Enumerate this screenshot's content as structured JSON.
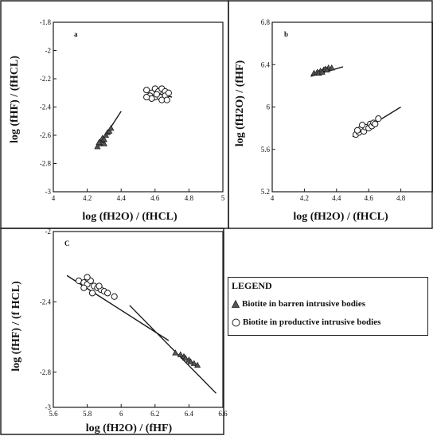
{
  "chart_data": [
    {
      "panel": "a",
      "type": "scatter",
      "xlabel": "log (fH2O) / (fHCL)",
      "ylabel": "log (fHF) / (fHCL)",
      "xlim": [
        4,
        5
      ],
      "ylim": [
        -3,
        -1.8
      ],
      "xticks": [
        "4",
        "4.2",
        "4.4",
        "4.6",
        "4.8",
        "5"
      ],
      "yticks": [
        "-1.8",
        "-2",
        "-2.2",
        "-2.4",
        "-2.6",
        "-2.8",
        "-3"
      ],
      "series": [
        {
          "name": "Biotite in barren intrusive bodies",
          "marker": "triangle",
          "points": [
            [
              4.26,
              -2.68
            ],
            [
              4.27,
              -2.66
            ],
            [
              4.28,
              -2.64
            ],
            [
              4.29,
              -2.62
            ],
            [
              4.3,
              -2.63
            ],
            [
              4.27,
              -2.65
            ],
            [
              4.31,
              -2.6
            ],
            [
              4.32,
              -2.58
            ],
            [
              4.3,
              -2.66
            ],
            [
              4.33,
              -2.57
            ],
            [
              4.34,
              -2.55
            ]
          ],
          "fit_line": [
            [
              4.26,
              -2.69
            ],
            [
              4.4,
              -2.43
            ]
          ]
        },
        {
          "name": "Biotite in productive intrusive bodies",
          "marker": "circle",
          "points": [
            [
              4.55,
              -2.28
            ],
            [
              4.58,
              -2.3
            ],
            [
              4.6,
              -2.27
            ],
            [
              4.62,
              -2.29
            ],
            [
              4.64,
              -2.27
            ],
            [
              4.66,
              -2.29
            ],
            [
              4.57,
              -2.32
            ],
            [
              4.6,
              -2.33
            ],
            [
              4.63,
              -2.33
            ],
            [
              4.66,
              -2.32
            ],
            [
              4.68,
              -2.3
            ],
            [
              4.61,
              -2.31
            ],
            [
              4.64,
              -2.35
            ],
            [
              4.58,
              -2.34
            ],
            [
              4.67,
              -2.35
            ],
            [
              4.55,
              -2.33
            ]
          ],
          "fit_line": [
            [
              4.53,
              -2.28
            ],
            [
              4.7,
              -2.33
            ]
          ]
        }
      ]
    },
    {
      "panel": "b",
      "type": "scatter",
      "xlabel": "log (fH2O) / (fHCL)",
      "ylabel": "log (fH2O) / (fHF)",
      "xlim": [
        4,
        5
      ],
      "ylim": [
        5.2,
        6.8
      ],
      "xticks": [
        "4",
        "4.2",
        "4.4",
        "4.6",
        "4.8"
      ],
      "yticks": [
        "6.8",
        "6.4",
        "6",
        "5.6",
        "5.2"
      ],
      "series": [
        {
          "name": "Biotite in barren intrusive bodies",
          "marker": "triangle",
          "points": [
            [
              4.26,
              6.32
            ],
            [
              4.28,
              6.33
            ],
            [
              4.3,
              6.34
            ],
            [
              4.32,
              6.35
            ],
            [
              4.33,
              6.36
            ],
            [
              4.35,
              6.37
            ],
            [
              4.37,
              6.37
            ],
            [
              4.29,
              6.32
            ],
            [
              4.31,
              6.33
            ],
            [
              4.34,
              6.35
            ]
          ],
          "fit_line": [
            [
              4.24,
              6.29
            ],
            [
              4.44,
              6.38
            ]
          ]
        },
        {
          "name": "Biotite in productive intrusive bodies",
          "marker": "circle",
          "points": [
            [
              4.52,
              5.74
            ],
            [
              4.54,
              5.76
            ],
            [
              4.55,
              5.79
            ],
            [
              4.57,
              5.77
            ],
            [
              4.58,
              5.81
            ],
            [
              4.6,
              5.8
            ],
            [
              4.61,
              5.84
            ],
            [
              4.62,
              5.82
            ],
            [
              4.63,
              5.85
            ],
            [
              4.64,
              5.84
            ],
            [
              4.56,
              5.83
            ],
            [
              4.66,
              5.89
            ],
            [
              4.53,
              5.78
            ]
          ],
          "fit_line": [
            [
              4.5,
              5.72
            ],
            [
              4.8,
              6.0
            ]
          ]
        }
      ]
    },
    {
      "panel": "C",
      "type": "scatter",
      "xlabel": "log (fH2O) / (fHF)",
      "ylabel": "log (fHF) / (f HCL)",
      "xlim": [
        5.6,
        6.6
      ],
      "ylim": [
        -3,
        -2
      ],
      "xticks": [
        "5.6",
        "5.8",
        "6",
        "6.2",
        "6.4",
        "6.6"
      ],
      "yticks": [
        "-2",
        "-2.4",
        "-2.8",
        "-3"
      ],
      "series": [
        {
          "name": "Biotite in barren intrusive bodies",
          "marker": "triangle",
          "points": [
            [
              6.32,
              -2.69
            ],
            [
              6.35,
              -2.7
            ],
            [
              6.37,
              -2.71
            ],
            [
              6.38,
              -2.72
            ],
            [
              6.4,
              -2.73
            ],
            [
              6.41,
              -2.74
            ],
            [
              6.43,
              -2.75
            ],
            [
              6.45,
              -2.76
            ]
          ],
          "fit_line": [
            [
              6.05,
              -2.42
            ],
            [
              6.56,
              -2.92
            ]
          ]
        },
        {
          "name": "Biotite in productive intrusive bodies",
          "marker": "circle",
          "points": [
            [
              5.75,
              -2.28
            ],
            [
              5.78,
              -2.29
            ],
            [
              5.8,
              -2.3
            ],
            [
              5.82,
              -2.28
            ],
            [
              5.84,
              -2.31
            ],
            [
              5.86,
              -2.32
            ],
            [
              5.88,
              -2.33
            ],
            [
              5.9,
              -2.34
            ],
            [
              5.92,
              -2.35
            ],
            [
              5.78,
              -2.32
            ],
            [
              5.83,
              -2.35
            ],
            [
              5.87,
              -2.31
            ],
            [
              5.96,
              -2.37
            ],
            [
              5.8,
              -2.26
            ]
          ],
          "fit_line": [
            [
              5.68,
              -2.25
            ],
            [
              6.28,
              -2.62
            ]
          ]
        }
      ]
    }
  ],
  "panel_labels": {
    "a": "a",
    "b": "b",
    "c": "C"
  },
  "axis_labels": {
    "a_y": "log (fHF) / (fHCL)",
    "a_x": "log (fH2O) / (fHCL)",
    "b_y": "log (fH2O) / (fHF)",
    "b_x": "log (fH2O) / (fHCL)",
    "c_y": "log (fHF) / (f HCL)",
    "c_x": "log (fH2O) / (fHF)"
  },
  "legend": {
    "title": "LEGEND",
    "barren": "Biotite in barren intrusive bodies",
    "productive": "Biotite in productive intrusive bodies"
  },
  "colors": {
    "ink": "#1a1a1a",
    "triangle_fill": "#555555",
    "circle_fill": "#ffffff"
  }
}
